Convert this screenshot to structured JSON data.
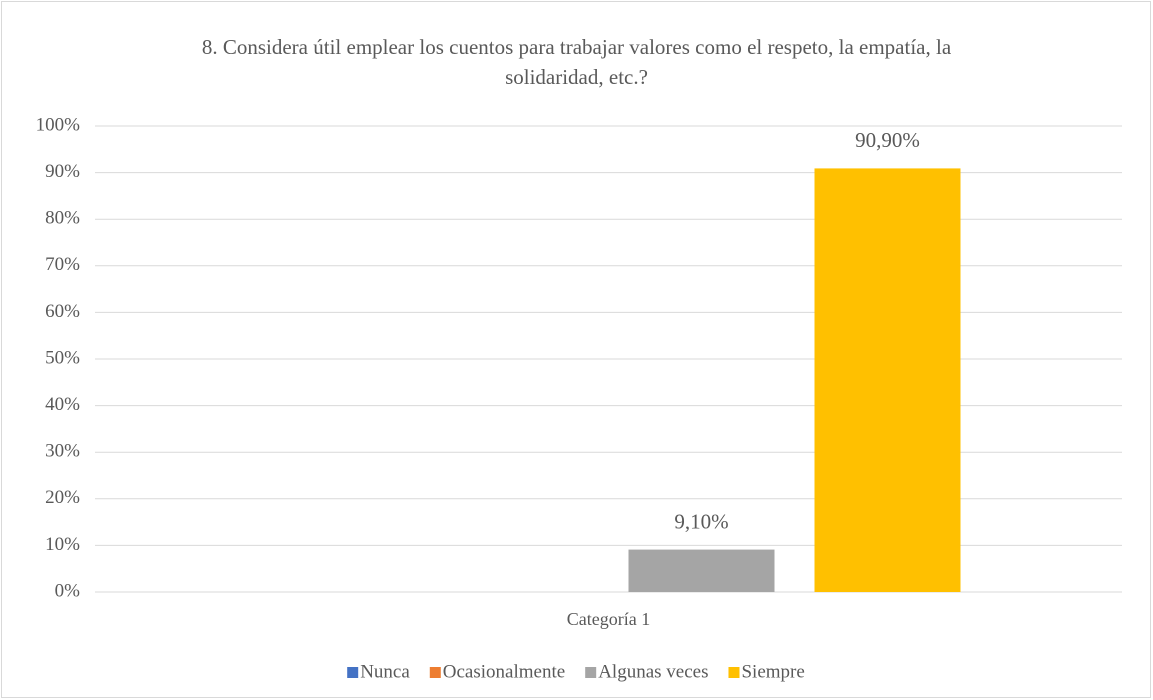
{
  "chart_data": {
    "type": "bar",
    "title": "8. Considera útil emplear los cuentos para trabajar valores como el respeto, la empatía, la solidaridad, etc.?",
    "categories": [
      "Categoría 1"
    ],
    "series": [
      {
        "name": "Nunca",
        "color": "#4472c4",
        "values": [
          0
        ]
      },
      {
        "name": "Ocasionalmente",
        "color": "#ed7d31",
        "values": [
          0
        ]
      },
      {
        "name": "Algunas veces",
        "color": "#a5a5a5",
        "values": [
          9.1
        ],
        "value_labels": [
          "9,10%"
        ]
      },
      {
        "name": "Siempre",
        "color": "#ffc000",
        "values": [
          90.9
        ],
        "value_labels": [
          "90,90%"
        ]
      }
    ],
    "ylim": [
      0,
      100
    ],
    "yticks": [
      {
        "value": 0,
        "label": "0%"
      },
      {
        "value": 10,
        "label": "10%"
      },
      {
        "value": 20,
        "label": "20%"
      },
      {
        "value": 30,
        "label": "30%"
      },
      {
        "value": 40,
        "label": "40%"
      },
      {
        "value": 50,
        "label": "50%"
      },
      {
        "value": 60,
        "label": "60%"
      },
      {
        "value": 70,
        "label": "70%"
      },
      {
        "value": 80,
        "label": "80%"
      },
      {
        "value": 90,
        "label": "90%"
      },
      {
        "value": 100,
        "label": "100%"
      }
    ],
    "grid": true,
    "legend": "bottom"
  }
}
